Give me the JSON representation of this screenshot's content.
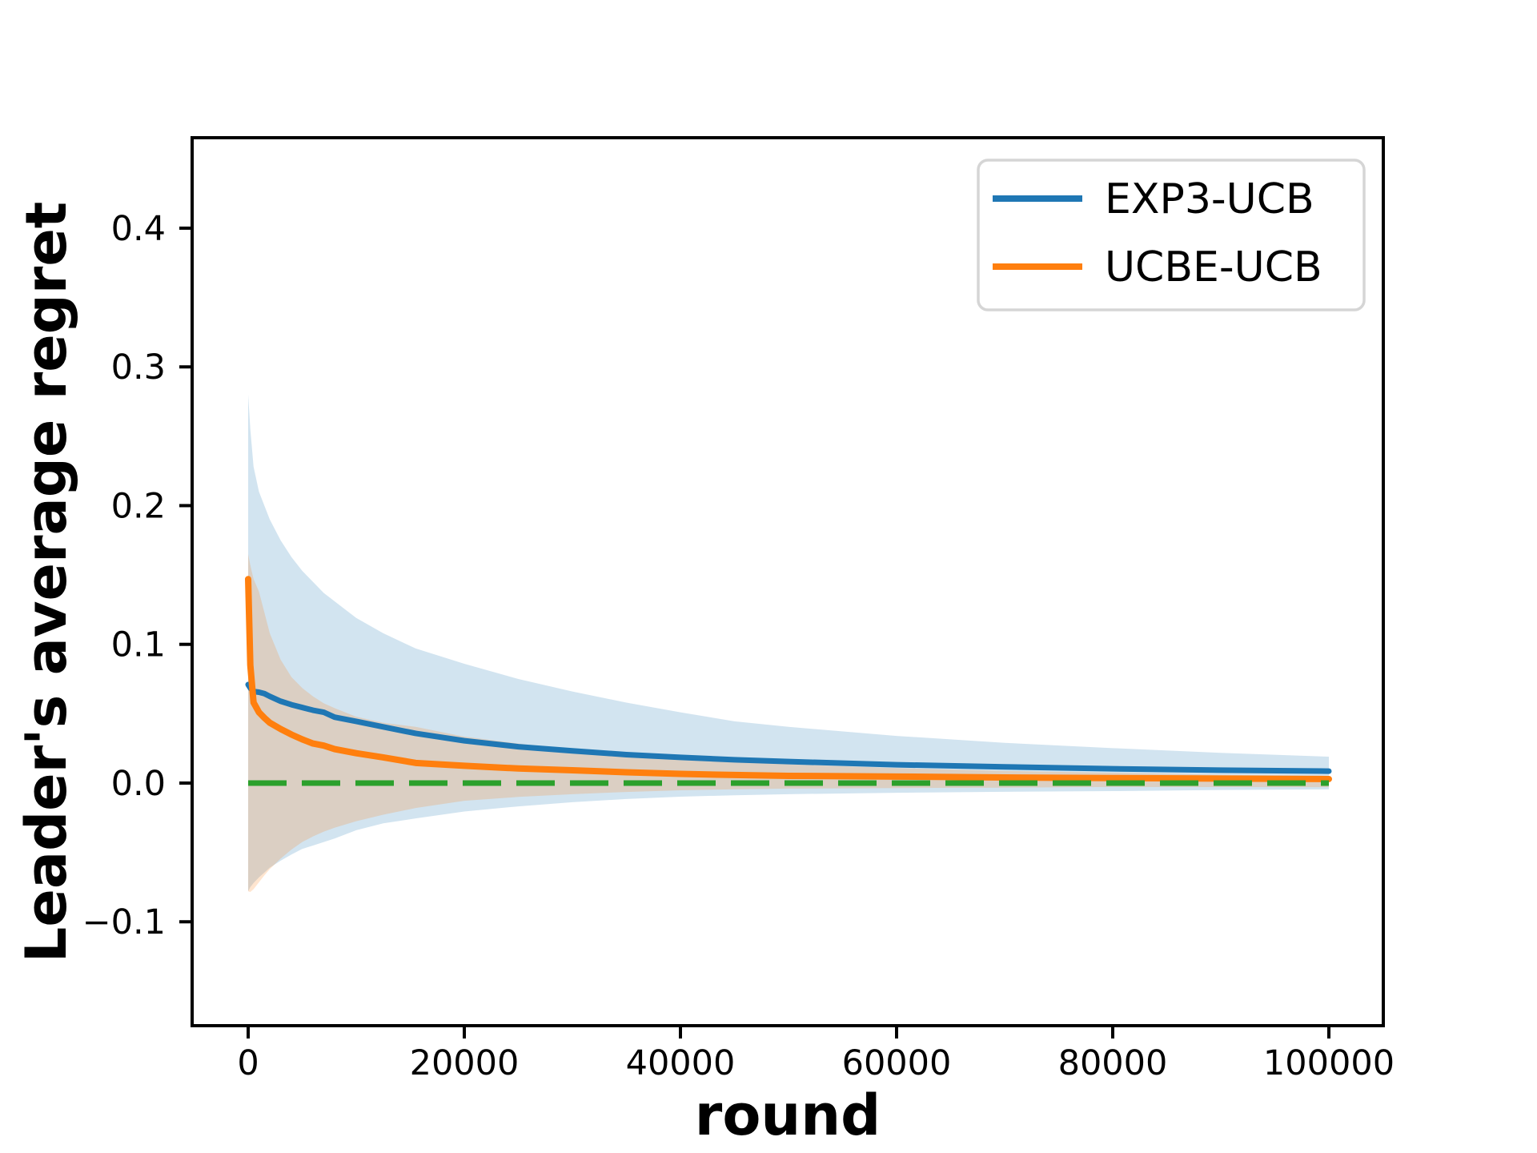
{
  "chart_data": {
    "type": "line",
    "title": "",
    "xlabel": "round",
    "ylabel": "Leader's average regret",
    "xlim": [
      -5185,
      105037
    ],
    "ylim": [
      -0.1749,
      0.4652
    ],
    "xticks": [
      0,
      20000,
      40000,
      60000,
      80000,
      100000
    ],
    "xtick_labels": [
      "0",
      "20000",
      "40000",
      "60000",
      "80000",
      "100000"
    ],
    "yticks": [
      -0.1,
      0.0,
      0.1,
      0.2,
      0.3,
      0.4
    ],
    "ytick_labels": [
      "−0.1",
      "0.0",
      "0.1",
      "0.2",
      "0.3",
      "0.4"
    ],
    "grid": false,
    "legend_position": "upper right",
    "zero_line": {
      "y": 0.0,
      "color": "#2ca02c",
      "style": "dashed",
      "x_start": 0,
      "x_end": 100000
    },
    "series": [
      {
        "name": "EXP3-UCB",
        "color": "#1f77b4",
        "band_alpha": 0.2,
        "x": [
          0,
          200,
          500,
          1000,
          1500,
          2000,
          3000,
          4000,
          5000,
          6000,
          7000,
          8000,
          10000,
          12500,
          15500,
          20000,
          25000,
          30000,
          35000,
          40000,
          45000,
          50000,
          60000,
          70000,
          80000,
          90000,
          100000
        ],
        "y": [
          0.071,
          0.0685,
          0.066,
          0.0655,
          0.0645,
          0.0625,
          0.059,
          0.0565,
          0.0545,
          0.0525,
          0.051,
          0.0475,
          0.0445,
          0.0405,
          0.0358,
          0.0305,
          0.0262,
          0.0232,
          0.0205,
          0.0185,
          0.0168,
          0.0155,
          0.0132,
          0.0117,
          0.0103,
          0.0093,
          0.0086
        ],
        "band_upper": [
          0.28,
          0.255,
          0.228,
          0.21,
          0.2,
          0.19,
          0.175,
          0.163,
          0.153,
          0.145,
          0.137,
          0.131,
          0.119,
          0.108,
          0.097,
          0.086,
          0.075,
          0.066,
          0.058,
          0.051,
          0.0445,
          0.0405,
          0.034,
          0.029,
          0.0252,
          0.0218,
          0.019
        ],
        "band_lower": [
          -0.078,
          -0.075,
          -0.072,
          -0.068,
          -0.0645,
          -0.061,
          -0.056,
          -0.0515,
          -0.0475,
          -0.045,
          -0.0425,
          -0.04,
          -0.034,
          -0.029,
          -0.0255,
          -0.0205,
          -0.0168,
          -0.0138,
          -0.0115,
          -0.0098,
          -0.0088,
          -0.008,
          -0.007,
          -0.0063,
          -0.0058,
          -0.005,
          -0.0045
        ]
      },
      {
        "name": "UCBE-UCB",
        "color": "#ff7f0e",
        "band_alpha": 0.2,
        "x": [
          0,
          200,
          500,
          1000,
          1500,
          2000,
          3000,
          4000,
          5000,
          6000,
          7000,
          8000,
          10000,
          12500,
          15500,
          20000,
          25000,
          30000,
          35000,
          40000,
          45000,
          50000,
          60000,
          70000,
          80000,
          90000,
          100000
        ],
        "y": [
          0.147,
          0.085,
          0.058,
          0.051,
          0.047,
          0.0435,
          0.039,
          0.035,
          0.0315,
          0.0285,
          0.027,
          0.0245,
          0.0215,
          0.0185,
          0.0145,
          0.0125,
          0.0105,
          0.0092,
          0.0078,
          0.0066,
          0.0058,
          0.0052,
          0.0047,
          0.004,
          0.0036,
          0.0032,
          0.0029
        ],
        "band_upper": [
          0.165,
          0.157,
          0.147,
          0.138,
          0.123,
          0.108,
          0.089,
          0.0765,
          0.0685,
          0.0625,
          0.0575,
          0.054,
          0.0478,
          0.0435,
          0.0405,
          0.0335,
          0.0285,
          0.0238,
          0.0198,
          0.0172,
          0.0155,
          0.0135,
          0.0108,
          0.0088,
          0.0074,
          0.006,
          0.005
        ],
        "band_lower": [
          -0.078,
          -0.0785,
          -0.0765,
          -0.0715,
          -0.0665,
          -0.062,
          -0.0545,
          -0.048,
          -0.0425,
          -0.0385,
          -0.035,
          -0.0322,
          -0.0275,
          -0.0228,
          -0.018,
          -0.0128,
          -0.01,
          -0.008,
          -0.0064,
          -0.0052,
          -0.0045,
          -0.004,
          -0.0036,
          -0.0033,
          -0.0028,
          -0.0029,
          -0.003
        ]
      }
    ]
  }
}
